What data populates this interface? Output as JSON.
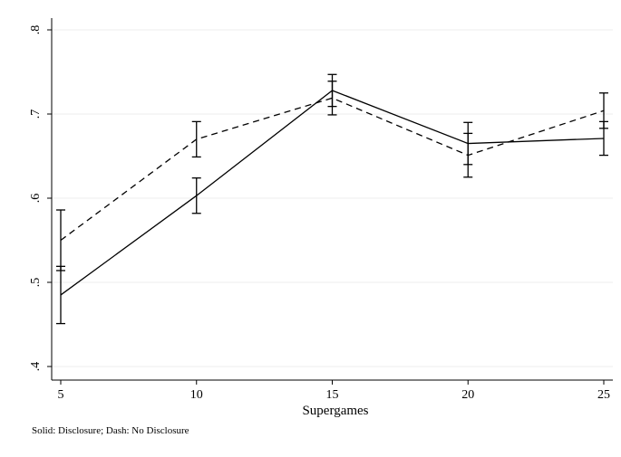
{
  "chart_data": {
    "type": "line",
    "title": "",
    "xlabel": "Supergames",
    "ylabel": "",
    "note": "Solid: Disclosure; Dash: No Disclosure",
    "x": [
      5,
      10,
      15,
      20,
      25
    ],
    "xticks": [
      "5",
      "10",
      "15",
      "20",
      "25"
    ],
    "yticks": [
      ".4",
      ".5",
      ".6",
      ".7",
      ".8"
    ],
    "xlim": [
      5,
      25
    ],
    "ylim": [
      0.4,
      0.8
    ],
    "grid": true,
    "series": [
      {
        "name": "Disclosure",
        "line_style": "solid",
        "values": [
          0.485,
          0.603,
          0.728,
          0.665,
          0.671
        ],
        "ci_low": [
          0.451,
          0.582,
          0.709,
          0.64,
          0.651
        ],
        "ci_high": [
          0.519,
          0.624,
          0.747,
          0.69,
          0.691
        ]
      },
      {
        "name": "No Disclosure",
        "line_style": "dashed",
        "values": [
          0.55,
          0.67,
          0.719,
          0.651,
          0.704
        ],
        "ci_low": [
          0.514,
          0.649,
          0.699,
          0.625,
          0.683
        ],
        "ci_high": [
          0.586,
          0.691,
          0.739,
          0.677,
          0.725
        ]
      }
    ]
  }
}
